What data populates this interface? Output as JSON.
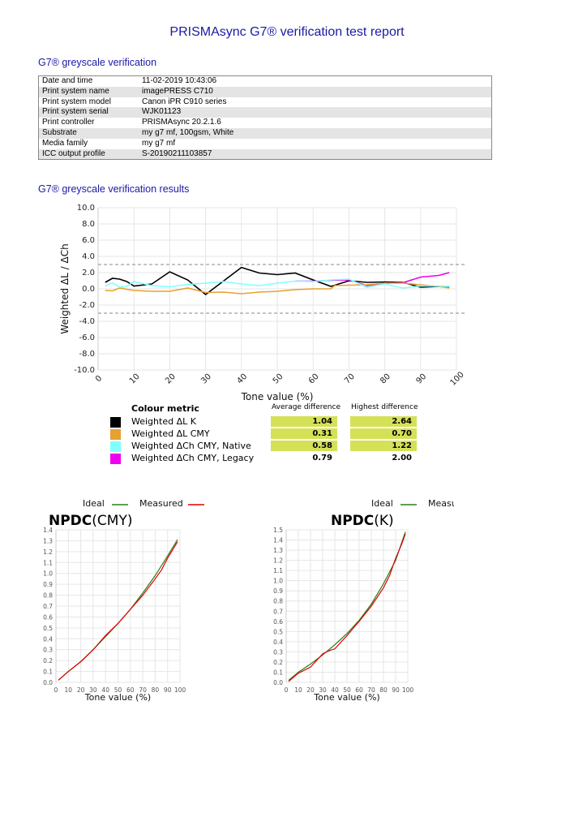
{
  "title": "PRISMAsync G7® verification test report",
  "section1": "G7® greyscale verification",
  "info": [
    {
      "label": "Date and time",
      "value": "11-02-2019 10:43:06"
    },
    {
      "label": "Print system name",
      "value": "imagePRESS C710"
    },
    {
      "label": "Print system model",
      "value": "Canon iPR C910 series"
    },
    {
      "label": "Print system serial",
      "value": "WJK01123"
    },
    {
      "label": "Print controller",
      "value": "PRISMAsync 20.2.1.6"
    },
    {
      "label": "Substrate",
      "value": "my g7 mf, 100gsm, White"
    },
    {
      "label": "Media family",
      "value": "my g7 mf"
    },
    {
      "label": "ICC output profile",
      "value": "S-20190211103857"
    }
  ],
  "section2": "G7® greyscale verification results",
  "legend": {
    "header": "Colour metric",
    "avg_header": "Average difference",
    "hi_header": "Highest difference",
    "highlight_color": "#d4e157",
    "rows": [
      {
        "name": "Weighted ΔL K",
        "color": "#000000",
        "avg": "1.04",
        "hi": "2.64",
        "highlight": true
      },
      {
        "name": "Weighted ΔL CMY",
        "color": "#e8a030",
        "avg": "0.31",
        "hi": "0.70",
        "highlight": true
      },
      {
        "name": "Weighted ΔCh CMY, Native",
        "color": "#80ffff",
        "avg": "0.58",
        "hi": "1.22",
        "highlight": true
      },
      {
        "name": "Weighted ΔCh CMY, Legacy",
        "color": "#ee00ee",
        "avg": "0.79",
        "hi": "2.00",
        "highlight": false
      }
    ]
  },
  "chart_data": [
    {
      "type": "line",
      "xlabel": "Tone value (%)",
      "ylabel": "Weighted ΔL / ΔCh",
      "xlim": [
        0,
        100
      ],
      "ylim": [
        -10,
        10
      ],
      "xticks": [
        "0",
        "10",
        "20",
        "30",
        "40",
        "50",
        "60",
        "70",
        "80",
        "90",
        "100"
      ],
      "yticks": [
        "10.0",
        "8.0",
        "6.0",
        "4.0",
        "2.0",
        "0.0",
        "-2.0",
        "-4.0",
        "-6.0",
        "-8.0",
        "-10.0"
      ],
      "grid": true,
      "tolerance_lines": [
        3,
        -3
      ],
      "series": [
        {
          "name": "Weighted ΔL K",
          "color": "#000000",
          "x": [
            2,
            4,
            6,
            8,
            10,
            15,
            20,
            25,
            30,
            40,
            45,
            50,
            55,
            60,
            65,
            70,
            75,
            80,
            85,
            90,
            95,
            98
          ],
          "y": [
            0.8,
            1.3,
            1.2,
            0.9,
            0.35,
            0.6,
            2.1,
            1.1,
            -0.7,
            2.64,
            1.95,
            1.75,
            1.95,
            1.1,
            0.3,
            1.0,
            0.8,
            0.85,
            0.8,
            0.2,
            0.3,
            0.2
          ]
        },
        {
          "name": "Weighted ΔCh CMY, Legacy",
          "color": "#ee00ee",
          "x": [
            55,
            60,
            65,
            70,
            75,
            80,
            85,
            90,
            95,
            98
          ],
          "y": [
            0.95,
            0.95,
            1.05,
            1.1,
            0.4,
            0.7,
            0.75,
            1.45,
            1.65,
            2.0
          ]
        },
        {
          "name": "Weighted ΔL CMY",
          "color": "#e8a030",
          "x": [
            2,
            4,
            6,
            10,
            15,
            20,
            25,
            30,
            35,
            40,
            45,
            50,
            55,
            60,
            65,
            66,
            70,
            75,
            80,
            85,
            90,
            95,
            98
          ],
          "y": [
            -0.2,
            -0.25,
            0.1,
            -0.2,
            -0.3,
            -0.3,
            0.1,
            -0.45,
            -0.4,
            -0.6,
            -0.4,
            -0.3,
            -0.1,
            0,
            0,
            0.4,
            0.45,
            0.5,
            0.7,
            0.7,
            0.5,
            0.3,
            0.1
          ]
        },
        {
          "name": "Weighted ΔCh CMY, Native",
          "color": "#80ffff",
          "x": [
            2,
            4,
            6,
            8,
            10,
            15,
            20,
            25,
            30,
            35,
            40,
            45,
            50,
            55,
            60,
            65,
            70,
            75,
            80,
            85,
            90,
            95,
            98
          ],
          "y": [
            0.35,
            0.75,
            0.2,
            0.3,
            0.9,
            0.4,
            0.25,
            0.55,
            0.7,
            0.9,
            0.6,
            0.4,
            0.7,
            0.95,
            0.9,
            1.1,
            1.2,
            0.2,
            0.6,
            0.1,
            0.35,
            0.35,
            0.3
          ]
        }
      ]
    },
    {
      "type": "line",
      "title_bold": "NPDC",
      "title_rest": "(CMY)",
      "xlabel": "Tone value (%)",
      "xlim": [
        0,
        100
      ],
      "ylim": [
        0,
        1.4
      ],
      "xticks": [
        "0",
        "10",
        "20",
        "30",
        "40",
        "50",
        "60",
        "70",
        "80",
        "90",
        "100"
      ],
      "yticks": [
        "0.0",
        "0.1",
        "0.2",
        "0.3",
        "0.4",
        "0.5",
        "0.6",
        "0.7",
        "0.8",
        "0.9",
        "1.0",
        "1.1",
        "1.2",
        "1.3",
        "1.4"
      ],
      "legend": [
        "Ideal",
        "Measured"
      ],
      "series": [
        {
          "name": "Ideal",
          "color": "#2e7d1a",
          "x": [
            2,
            10,
            20,
            30,
            40,
            50,
            60,
            70,
            80,
            90,
            98
          ],
          "y": [
            0.02,
            0.1,
            0.19,
            0.3,
            0.42,
            0.54,
            0.67,
            0.82,
            0.98,
            1.16,
            1.31
          ]
        },
        {
          "name": "Measured",
          "color": "#e00000",
          "x": [
            2,
            10,
            20,
            30,
            40,
            50,
            60,
            70,
            80,
            85,
            90,
            98
          ],
          "y": [
            0.02,
            0.1,
            0.19,
            0.3,
            0.43,
            0.54,
            0.67,
            0.8,
            0.95,
            1.03,
            1.14,
            1.29
          ]
        }
      ]
    },
    {
      "type": "line",
      "title_bold": "NPDC",
      "title_rest": "(K)",
      "xlabel": "Tone value (%)",
      "xlim": [
        0,
        100
      ],
      "ylim": [
        0,
        1.5
      ],
      "xticks": [
        "0",
        "10",
        "20",
        "30",
        "40",
        "50",
        "60",
        "70",
        "80",
        "90",
        "100"
      ],
      "yticks": [
        "0.0",
        "0.1",
        "0.2",
        "0.3",
        "0.4",
        "0.5",
        "0.6",
        "0.7",
        "0.8",
        "0.9",
        "1.0",
        "1.1",
        "1.2",
        "1.3",
        "1.4",
        "1.5"
      ],
      "legend": [
        "Ideal",
        "Measured"
      ],
      "series": [
        {
          "name": "Ideal",
          "color": "#2e7d1a",
          "x": [
            2,
            10,
            20,
            30,
            40,
            50,
            60,
            70,
            80,
            90,
            98
          ],
          "y": [
            0.02,
            0.1,
            0.18,
            0.27,
            0.37,
            0.48,
            0.61,
            0.77,
            0.97,
            1.2,
            1.48
          ]
        },
        {
          "name": "Measured",
          "color": "#e00000",
          "x": [
            2,
            10,
            20,
            30,
            35,
            40,
            50,
            60,
            70,
            80,
            85,
            90,
            95,
            98
          ],
          "y": [
            0.01,
            0.09,
            0.15,
            0.28,
            0.31,
            0.33,
            0.46,
            0.6,
            0.75,
            0.93,
            1.05,
            1.22,
            1.36,
            1.46
          ]
        }
      ]
    }
  ]
}
